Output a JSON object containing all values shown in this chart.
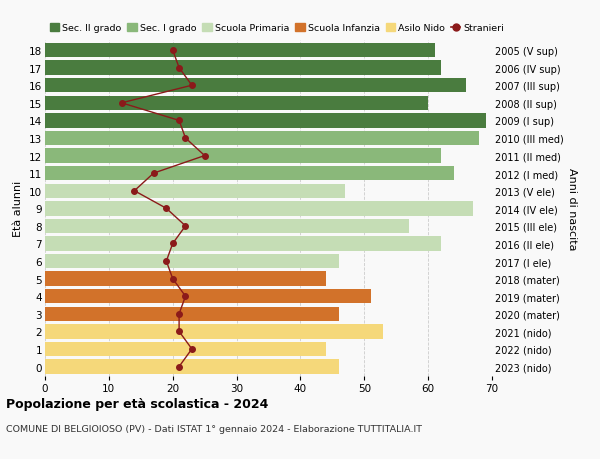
{
  "ages": [
    18,
    17,
    16,
    15,
    14,
    13,
    12,
    11,
    10,
    9,
    8,
    7,
    6,
    5,
    4,
    3,
    2,
    1,
    0
  ],
  "years": [
    "2005 (V sup)",
    "2006 (IV sup)",
    "2007 (III sup)",
    "2008 (II sup)",
    "2009 (I sup)",
    "2010 (III med)",
    "2011 (II med)",
    "2012 (I med)",
    "2013 (V ele)",
    "2014 (IV ele)",
    "2015 (III ele)",
    "2016 (II ele)",
    "2017 (I ele)",
    "2018 (mater)",
    "2019 (mater)",
    "2020 (mater)",
    "2021 (nido)",
    "2022 (nido)",
    "2023 (nido)"
  ],
  "bar_values": [
    61,
    62,
    66,
    60,
    69,
    68,
    62,
    64,
    47,
    67,
    57,
    62,
    46,
    44,
    51,
    46,
    53,
    44,
    46
  ],
  "bar_colors": [
    "#4a7c3f",
    "#4a7c3f",
    "#4a7c3f",
    "#4a7c3f",
    "#4a7c3f",
    "#8ab87a",
    "#8ab87a",
    "#8ab87a",
    "#c5ddb5",
    "#c5ddb5",
    "#c5ddb5",
    "#c5ddb5",
    "#c5ddb5",
    "#d2722a",
    "#d2722a",
    "#d2722a",
    "#f5d87a",
    "#f5d87a",
    "#f5d87a"
  ],
  "stranieri_values": [
    20,
    21,
    23,
    12,
    21,
    22,
    25,
    17,
    14,
    19,
    22,
    20,
    19,
    20,
    22,
    21,
    21,
    23,
    21
  ],
  "stranieri_color": "#8b1a1a",
  "xlim": [
    0,
    70
  ],
  "xticks": [
    0,
    10,
    20,
    30,
    40,
    50,
    60,
    70
  ],
  "ylabel": "Età alunni",
  "right_label": "Anni di nascita",
  "title": "Popolazione per età scolastica - 2024",
  "subtitle": "COMUNE DI BELGIOIOSO (PV) - Dati ISTAT 1° gennaio 2024 - Elaborazione TUTTITALIA.IT",
  "legend_labels": [
    "Sec. II grado",
    "Sec. I grado",
    "Scuola Primaria",
    "Scuola Infanzia",
    "Asilo Nido",
    "Stranieri"
  ],
  "legend_colors": [
    "#4a7c3f",
    "#8ab87a",
    "#c5ddb5",
    "#d2722a",
    "#f5d87a",
    "#8b1a1a"
  ],
  "bg_color": "#f9f9f9",
  "bar_height": 0.82,
  "grid_color": "#cccccc"
}
